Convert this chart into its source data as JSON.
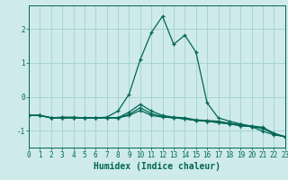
{
  "title": "",
  "xlabel": "Humidex (Indice chaleur)",
  "background_color": "#ceeaea",
  "grid_color": "#a8d4d4",
  "line_color": "#006655",
  "x_values": [
    0,
    1,
    2,
    3,
    4,
    5,
    6,
    7,
    8,
    9,
    10,
    11,
    12,
    13,
    14,
    15,
    16,
    17,
    18,
    19,
    20,
    21,
    22,
    23
  ],
  "lines": [
    [
      -0.55,
      -0.55,
      -0.62,
      -0.6,
      -0.6,
      -0.62,
      -0.62,
      -0.6,
      -0.42,
      0.08,
      1.1,
      1.9,
      2.38,
      1.55,
      1.82,
      1.32,
      -0.18,
      -0.62,
      -0.72,
      -0.8,
      -0.88,
      -1.02,
      -1.12,
      -1.18
    ],
    [
      -0.55,
      -0.55,
      -0.62,
      -0.62,
      -0.62,
      -0.62,
      -0.62,
      -0.62,
      -0.62,
      -0.45,
      -0.22,
      -0.42,
      -0.55,
      -0.6,
      -0.62,
      -0.68,
      -0.7,
      -0.72,
      -0.78,
      -0.82,
      -0.86,
      -0.9,
      -1.08,
      -1.18
    ],
    [
      -0.55,
      -0.55,
      -0.62,
      -0.62,
      -0.62,
      -0.62,
      -0.62,
      -0.62,
      -0.62,
      -0.52,
      -0.32,
      -0.5,
      -0.58,
      -0.62,
      -0.65,
      -0.7,
      -0.72,
      -0.76,
      -0.8,
      -0.85,
      -0.88,
      -0.92,
      -1.08,
      -1.18
    ],
    [
      -0.55,
      -0.55,
      -0.62,
      -0.62,
      -0.62,
      -0.62,
      -0.62,
      -0.62,
      -0.62,
      -0.55,
      -0.4,
      -0.55,
      -0.6,
      -0.62,
      -0.65,
      -0.7,
      -0.72,
      -0.76,
      -0.8,
      -0.85,
      -0.88,
      -0.93,
      -1.1,
      -1.18
    ]
  ],
  "xlim": [
    0,
    23
  ],
  "ylim": [
    -1.5,
    2.7
  ],
  "yticks": [
    -1,
    0,
    1,
    2
  ],
  "xticks": [
    0,
    1,
    2,
    3,
    4,
    5,
    6,
    7,
    8,
    9,
    10,
    11,
    12,
    13,
    14,
    15,
    16,
    17,
    18,
    19,
    20,
    21,
    22,
    23
  ],
  "marker": "+",
  "marker_size": 3,
  "line_width": 0.9,
  "xlabel_fontsize": 7,
  "tick_fontsize": 5.5
}
